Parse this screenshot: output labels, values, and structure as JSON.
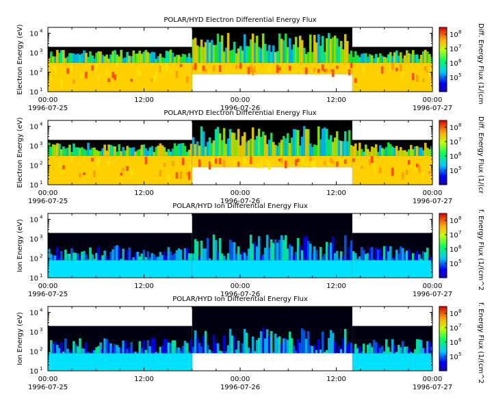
{
  "chart_data": [
    {
      "type": "heatmap",
      "title": "POLAR/HYD  Electron Differential Energy Flux",
      "ylabel": "Electron Energy (eV)",
      "y_scale": "log",
      "ylim": [
        10,
        20000
      ],
      "y_ticks": [
        {
          "value": 10,
          "base": "10",
          "exp": "1"
        },
        {
          "value": 100,
          "base": "10",
          "exp": "2"
        },
        {
          "value": 1000,
          "base": "10",
          "exp": "3"
        },
        {
          "value": 10000,
          "base": "10",
          "exp": "4"
        }
      ],
      "x_ticks": [
        {
          "time": "00:00",
          "date": "1996-07-25"
        },
        {
          "time": "12:00",
          "date": ""
        },
        {
          "time": "00:00",
          "date": "1996-07-26"
        },
        {
          "time": "12:00",
          "date": ""
        },
        {
          "time": "00:00",
          "date": "1996-07-27"
        }
      ],
      "xlim": [
        "1996-07-25 00:00",
        "1996-07-27 00:00"
      ],
      "colorbar_label": "Diff. Energy Flux (1/(cm",
      "colorbar_scale": "log",
      "colorbar_range": [
        10000,
        300000000
      ],
      "colorbar_ticks": [
        {
          "base": "10",
          "exp": "5"
        },
        {
          "base": "10",
          "exp": "6"
        },
        {
          "base": "10",
          "exp": "7"
        },
        {
          "base": "10",
          "exp": "8"
        }
      ],
      "coverage_upper_energy_eV": [
        2000,
        20000,
        2000
      ],
      "coverage_lower_energy_eV": [
        10,
        80,
        10
      ],
      "segment_bounds_hours": [
        0,
        18,
        38,
        48
      ]
    },
    {
      "type": "heatmap",
      "title": "POLAR/HYD  Electron Differential Energy Flux",
      "ylabel": "Electron Energy (eV)",
      "y_scale": "log",
      "ylim": [
        10,
        20000
      ],
      "y_ticks": [
        {
          "value": 10,
          "base": "10",
          "exp": "1"
        },
        {
          "value": 100,
          "base": "10",
          "exp": "2"
        },
        {
          "value": 1000,
          "base": "10",
          "exp": "3"
        },
        {
          "value": 10000,
          "base": "10",
          "exp": "4"
        }
      ],
      "x_ticks": [
        {
          "time": "00:00",
          "date": "1996-07-25"
        },
        {
          "time": "12:00",
          "date": ""
        },
        {
          "time": "00:00",
          "date": "1996-07-26"
        },
        {
          "time": "12:00",
          "date": ""
        },
        {
          "time": "00:00",
          "date": "1996-07-27"
        }
      ],
      "xlim": [
        "1996-07-25 00:00",
        "1996-07-27 00:00"
      ],
      "colorbar_label": "Diff. Energy Flux (1/(cr",
      "colorbar_scale": "log",
      "colorbar_range": [
        10000,
        300000000
      ],
      "colorbar_ticks": [
        {
          "base": "10",
          "exp": "5"
        },
        {
          "base": "10",
          "exp": "6"
        },
        {
          "base": "10",
          "exp": "7"
        },
        {
          "base": "10",
          "exp": "8"
        }
      ],
      "coverage_upper_energy_eV": [
        2000,
        20000,
        2000
      ],
      "coverage_lower_energy_eV": [
        10,
        80,
        10
      ],
      "segment_bounds_hours": [
        0,
        18,
        38,
        48
      ]
    },
    {
      "type": "heatmap",
      "title": "POLAR/HYD  Ion Differential Energy Flux",
      "ylabel": "Ion Energy (eV)",
      "y_scale": "log",
      "ylim": [
        10,
        20000
      ],
      "y_ticks": [
        {
          "value": 10,
          "base": "10",
          "exp": "1"
        },
        {
          "value": 100,
          "base": "10",
          "exp": "2"
        },
        {
          "value": 1000,
          "base": "10",
          "exp": "3"
        },
        {
          "value": 10000,
          "base": "10",
          "exp": "4"
        }
      ],
      "x_ticks": [
        {
          "time": "00:00",
          "date": "1996-07-25"
        },
        {
          "time": "12:00",
          "date": ""
        },
        {
          "time": "00:00",
          "date": "1996-07-26"
        },
        {
          "time": "12:00",
          "date": ""
        },
        {
          "time": "00:00",
          "date": "1996-07-27"
        }
      ],
      "xlim": [
        "1996-07-25 00:00",
        "1996-07-27 00:00"
      ],
      "colorbar_label": "f. Energy Flux (1/(cm^2",
      "colorbar_scale": "log",
      "colorbar_range": [
        10000,
        300000000
      ],
      "colorbar_ticks": [
        {
          "base": "10",
          "exp": "5"
        },
        {
          "base": "10",
          "exp": "6"
        },
        {
          "base": "10",
          "exp": "7"
        },
        {
          "base": "10",
          "exp": "8"
        }
      ],
      "coverage_upper_energy_eV": [
        2000,
        20000,
        2000
      ],
      "coverage_lower_energy_eV": [
        10,
        10,
        10
      ],
      "segment_bounds_hours": [
        0,
        18,
        38,
        48
      ]
    },
    {
      "type": "heatmap",
      "title": "POLAR/HYD  Ion Differential Energy Flux",
      "ylabel": "Ion Energy (eV)",
      "y_scale": "log",
      "ylim": [
        10,
        20000
      ],
      "y_ticks": [
        {
          "value": 10,
          "base": "10",
          "exp": "1"
        },
        {
          "value": 100,
          "base": "10",
          "exp": "2"
        },
        {
          "value": 1000,
          "base": "10",
          "exp": "3"
        },
        {
          "value": 10000,
          "base": "10",
          "exp": "4"
        }
      ],
      "x_ticks": [
        {
          "time": "00:00",
          "date": "1996-07-25"
        },
        {
          "time": "12:00",
          "date": ""
        },
        {
          "time": "00:00",
          "date": "1996-07-26"
        },
        {
          "time": "12:00",
          "date": ""
        },
        {
          "time": "00:00",
          "date": "1996-07-27"
        }
      ],
      "xlim": [
        "1996-07-25 00:00",
        "1996-07-27 00:00"
      ],
      "colorbar_label": "f. Energy Flux (1/(cm^2",
      "colorbar_scale": "log",
      "colorbar_range": [
        10000,
        300000000
      ],
      "colorbar_ticks": [
        {
          "base": "10",
          "exp": "5"
        },
        {
          "base": "10",
          "exp": "6"
        },
        {
          "base": "10",
          "exp": "7"
        },
        {
          "base": "10",
          "exp": "8"
        }
      ],
      "coverage_upper_energy_eV": [
        2000,
        20000,
        2000
      ],
      "coverage_lower_energy_eV": [
        10,
        80,
        10
      ],
      "segment_bounds_hours": [
        0,
        18,
        38,
        48
      ]
    }
  ]
}
